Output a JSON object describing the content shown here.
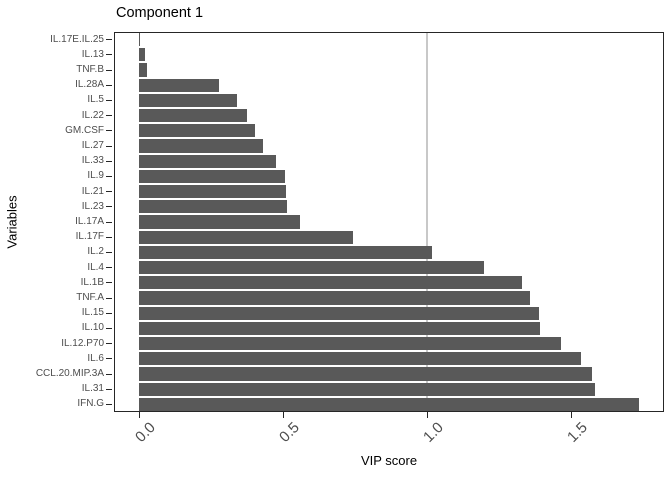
{
  "chart_data": {
    "type": "bar",
    "orientation": "horizontal",
    "title": "Component 1",
    "xlabel": "VIP score",
    "ylabel": "Variables",
    "categories": [
      "IL.17E.IL.25",
      "IL.13",
      "TNF.B",
      "IL.28A",
      "IL.5",
      "IL.22",
      "GM.CSF",
      "IL.27",
      "IL.33",
      "IL.9",
      "IL.21",
      "IL.23",
      "IL.17A",
      "IL.17F",
      "IL.2",
      "IL.4",
      "IL.1B",
      "TNF.A",
      "IL.15",
      "IL.10",
      "IL.12.P70",
      "IL.6",
      "CCL.20.MIP.3A",
      "IL.31",
      "IFN.G"
    ],
    "values": [
      0.004,
      0.021,
      0.029,
      0.278,
      0.34,
      0.375,
      0.403,
      0.429,
      0.475,
      0.507,
      0.51,
      0.515,
      0.558,
      0.742,
      1.016,
      1.197,
      1.33,
      1.357,
      1.388,
      1.392,
      1.464,
      1.533,
      1.572,
      1.583,
      1.736
    ],
    "x_tick_labels": [
      "0.0",
      "0.5",
      "1.0",
      "1.5"
    ],
    "x_tick_values": [
      0.0,
      0.5,
      1.0,
      1.5
    ],
    "xlim": [
      -0.09,
      1.82
    ],
    "reference_line_x": 1.0,
    "grid": "off",
    "legend": "none",
    "bar_color": "#595959",
    "reference_line_color": "#c8c8c8",
    "axis_text_color": "#4d4d4d",
    "panel_border_color": "#262626"
  }
}
